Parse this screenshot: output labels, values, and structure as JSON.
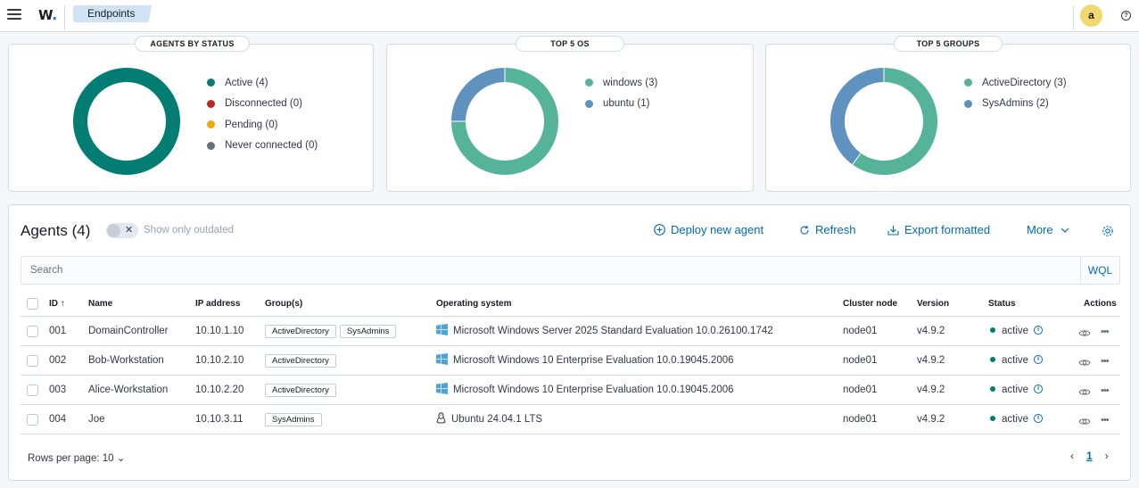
{
  "header": {
    "logo_text": "W",
    "logo_dot": ".",
    "breadcrumb": "Endpoints",
    "avatar_letter": "a"
  },
  "panels": {
    "status": {
      "title": "AGENTS BY STATUS",
      "items": [
        {
          "label": "Active (4)",
          "color": "#017d73",
          "value": 4
        },
        {
          "label": "Disconnected (0)",
          "color": "#bd271e",
          "value": 0
        },
        {
          "label": "Pending (0)",
          "color": "#f5a700",
          "value": 0
        },
        {
          "label": "Never connected (0)",
          "color": "#69707d",
          "value": 0
        }
      ]
    },
    "os": {
      "title": "TOP 5 OS",
      "items": [
        {
          "label": "windows (3)",
          "color": "#54b399",
          "value": 3
        },
        {
          "label": "ubuntu (1)",
          "color": "#6092c0",
          "value": 1
        }
      ]
    },
    "groups": {
      "title": "TOP 5 GROUPS",
      "items": [
        {
          "label": "ActiveDirectory (3)",
          "color": "#54b399",
          "value": 3
        },
        {
          "label": "SysAdmins (2)",
          "color": "#6092c0",
          "value": 2
        }
      ]
    }
  },
  "agents": {
    "title": "Agents (4)",
    "toggle_label": "Show only outdated",
    "actions": {
      "deploy": "Deploy new agent",
      "refresh": "Refresh",
      "export": "Export formatted",
      "more": "More"
    },
    "search_placeholder": "Search",
    "wql_label": "WQL",
    "columns": {
      "id": "ID",
      "name": "Name",
      "ip": "IP address",
      "groups": "Group(s)",
      "os": "Operating system",
      "node": "Cluster node",
      "version": "Version",
      "status": "Status",
      "actions": "Actions"
    },
    "rows": [
      {
        "id": "001",
        "name": "DomainController",
        "ip": "10.10.1.10",
        "groups": [
          "ActiveDirectory",
          "SysAdmins"
        ],
        "os": "Microsoft Windows Server 2025 Standard Evaluation 10.0.26100.1742",
        "os_icon": "windows-icon",
        "node": "node01",
        "version": "v4.9.2",
        "status": "active"
      },
      {
        "id": "002",
        "name": "Bob-Workstation",
        "ip": "10.10.2.10",
        "groups": [
          "ActiveDirectory"
        ],
        "os": "Microsoft Windows 10 Enterprise Evaluation 10.0.19045.2006",
        "os_icon": "windows-icon",
        "node": "node01",
        "version": "v4.9.2",
        "status": "active"
      },
      {
        "id": "003",
        "name": "Alice-Workstation",
        "ip": "10.10.2.20",
        "groups": [
          "ActiveDirectory"
        ],
        "os": "Microsoft Windows 10 Enterprise Evaluation 10.0.19045.2006",
        "os_icon": "windows-icon",
        "node": "node01",
        "version": "v4.9.2",
        "status": "active"
      },
      {
        "id": "004",
        "name": "Joe",
        "ip": "10.10.3.11",
        "groups": [
          "SysAdmins"
        ],
        "os": "Ubuntu 24.04.1 LTS",
        "os_icon": "linux-icon",
        "node": "node01",
        "version": "v4.9.2",
        "status": "active"
      }
    ],
    "rows_per_page": "Rows per page: 10",
    "current_page": "1"
  }
}
